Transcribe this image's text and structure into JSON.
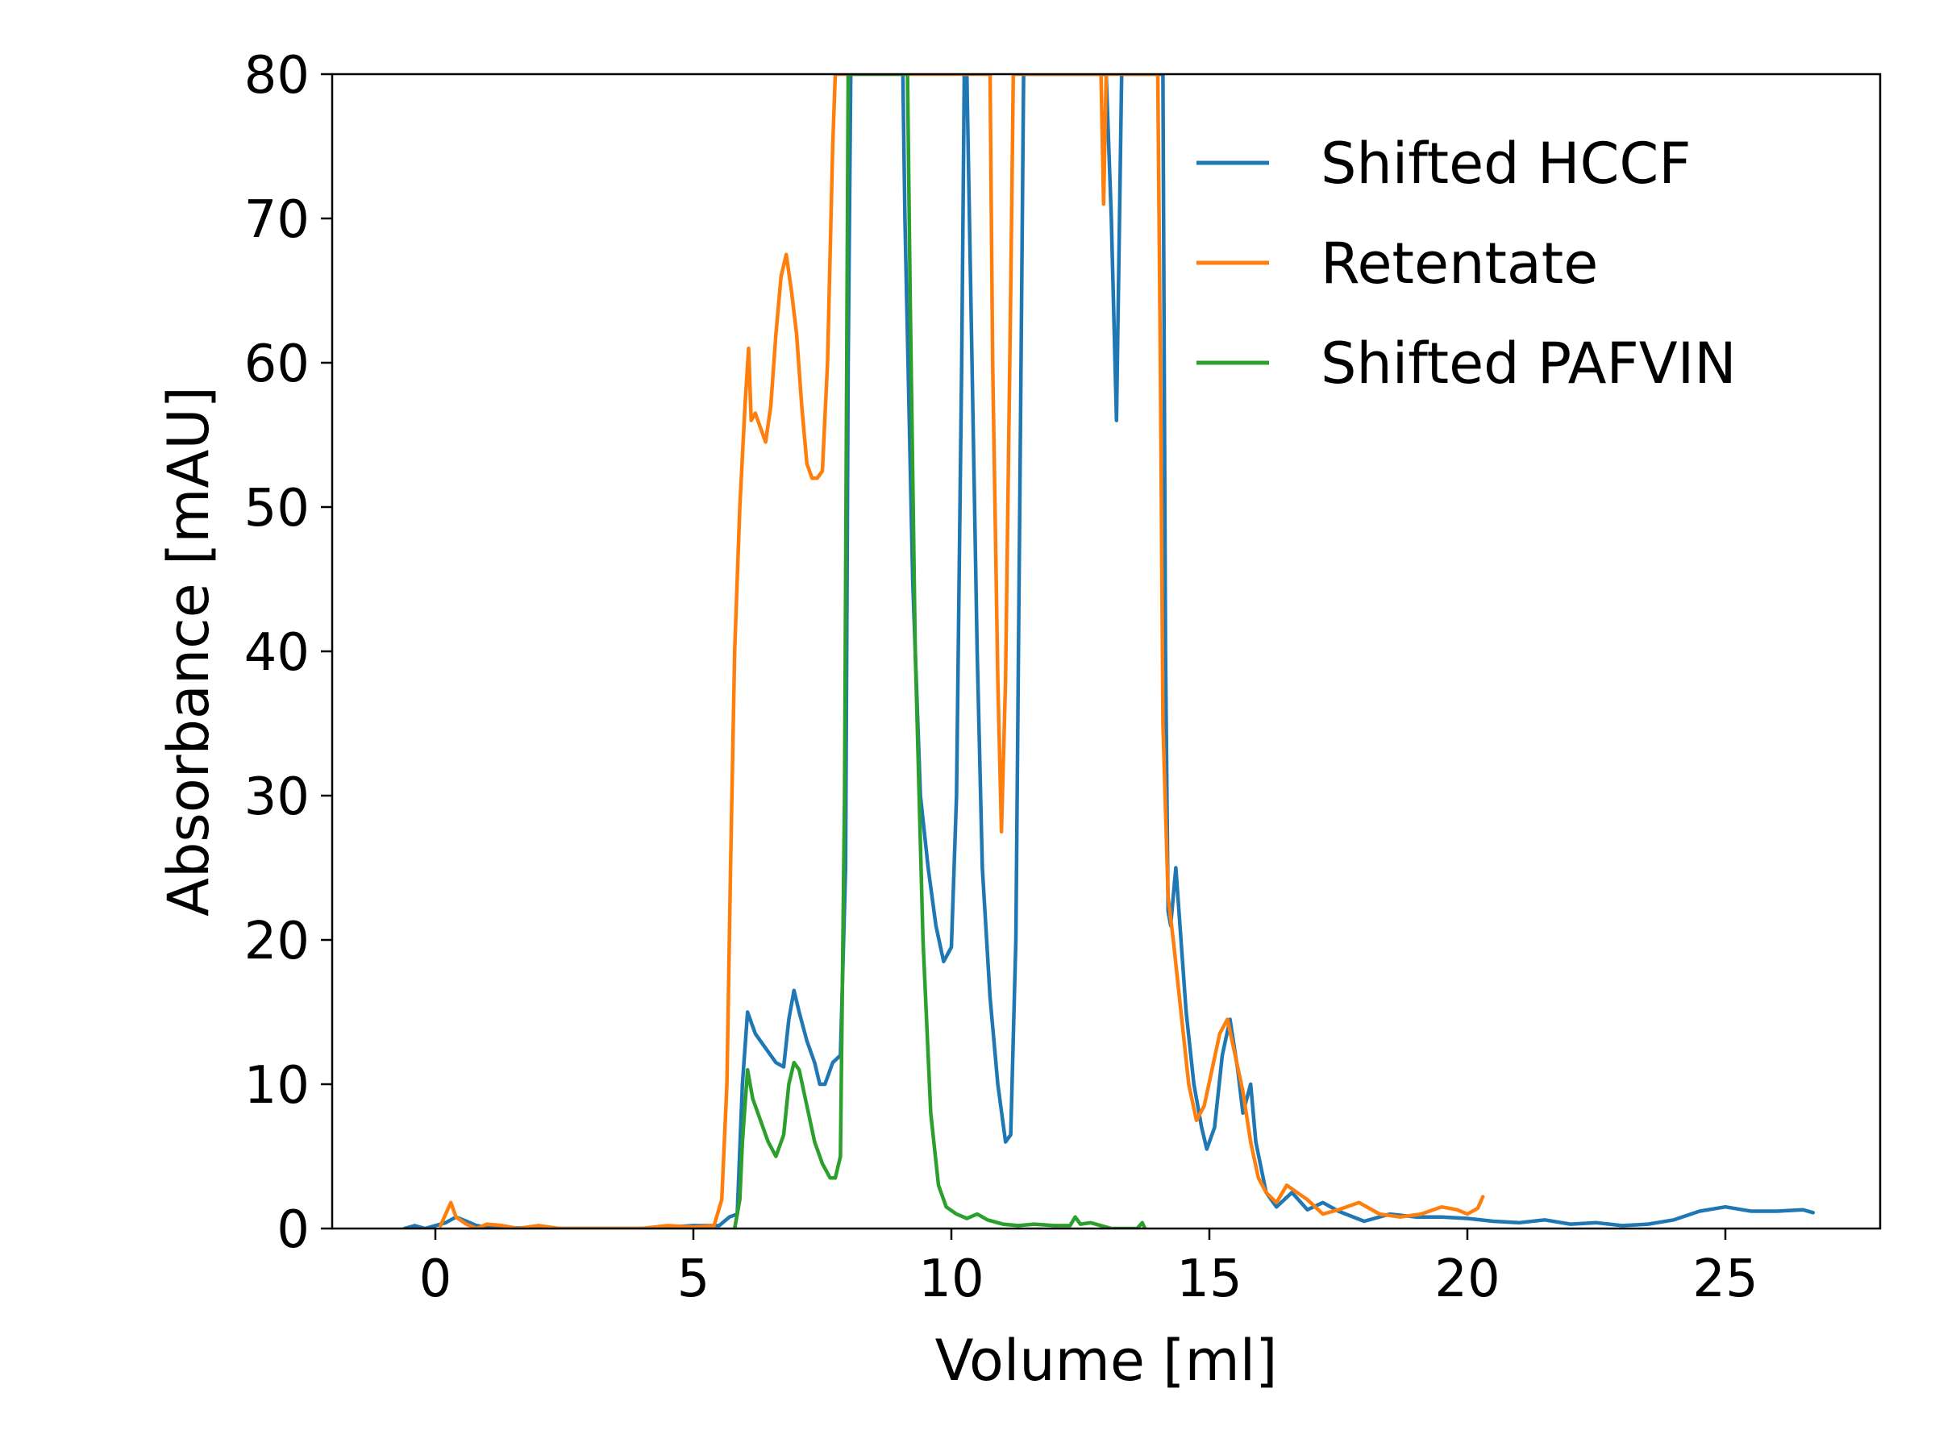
{
  "chart_data": {
    "type": "line",
    "title": "",
    "xlabel": "Volume [ml]",
    "ylabel": "Absorbance [mAU]",
    "xlim": [
      -2,
      28
    ],
    "ylim": [
      0,
      80
    ],
    "xticks": [
      0,
      5,
      10,
      15,
      20,
      25
    ],
    "yticks": [
      0,
      10,
      20,
      30,
      40,
      50,
      60,
      70,
      80
    ],
    "xtick_labels": [
      "0",
      "5",
      "10",
      "15",
      "20",
      "25"
    ],
    "ytick_labels": [
      "0",
      "10",
      "20",
      "30",
      "40",
      "50",
      "60",
      "70",
      "80"
    ],
    "grid": false,
    "legend_position": "top-right",
    "series": [
      {
        "name": "Shifted HCCF",
        "color": "#1f77b4",
        "points": [
          [
            -0.6,
            0.0
          ],
          [
            -0.4,
            0.2
          ],
          [
            -0.2,
            0.0
          ],
          [
            0,
            0.2
          ],
          [
            0.2,
            0.4
          ],
          [
            0.4,
            0.8
          ],
          [
            0.6,
            0.5
          ],
          [
            0.8,
            0.2
          ],
          [
            1.0,
            0.1
          ],
          [
            2.0,
            0.0
          ],
          [
            3.0,
            0.0
          ],
          [
            4.0,
            0.0
          ],
          [
            5.0,
            0.2
          ],
          [
            5.5,
            0.2
          ],
          [
            5.7,
            0.8
          ],
          [
            5.85,
            1.0
          ],
          [
            5.95,
            10
          ],
          [
            6.05,
            15.0
          ],
          [
            6.2,
            13.5
          ],
          [
            6.4,
            12.5
          ],
          [
            6.6,
            11.5
          ],
          [
            6.75,
            11.2
          ],
          [
            6.85,
            14.5
          ],
          [
            6.95,
            16.5
          ],
          [
            7.05,
            15.0
          ],
          [
            7.2,
            13.0
          ],
          [
            7.35,
            11.5
          ],
          [
            7.45,
            10.0
          ],
          [
            7.55,
            10.0
          ],
          [
            7.7,
            11.5
          ],
          [
            7.85,
            12.0
          ],
          [
            7.95,
            25.0
          ],
          [
            8.0,
            60.0
          ],
          [
            8.05,
            80.0
          ],
          [
            8.5,
            95.0
          ],
          [
            9.0,
            95.0
          ],
          [
            9.1,
            70.0
          ],
          [
            9.25,
            45.0
          ],
          [
            9.4,
            30.0
          ],
          [
            9.55,
            25.0
          ],
          [
            9.7,
            21.0
          ],
          [
            9.85,
            18.5
          ],
          [
            10.0,
            19.5
          ],
          [
            10.1,
            30.0
          ],
          [
            10.2,
            60.0
          ],
          [
            10.25,
            80.0
          ],
          [
            10.3,
            80.0
          ],
          [
            10.4,
            60.0
          ],
          [
            10.5,
            40.0
          ],
          [
            10.6,
            25.0
          ],
          [
            10.75,
            16.0
          ],
          [
            10.9,
            10.0
          ],
          [
            11.05,
            6.0
          ],
          [
            11.15,
            6.5
          ],
          [
            11.25,
            20.0
          ],
          [
            11.35,
            60.0
          ],
          [
            11.4,
            80.0
          ],
          [
            12.9,
            80.0
          ],
          [
            13.0,
            80.0
          ],
          [
            13.1,
            70.0
          ],
          [
            13.2,
            56.0
          ],
          [
            13.3,
            80.0
          ],
          [
            14.1,
            80.0
          ],
          [
            14.15,
            40.0
          ],
          [
            14.2,
            22.0
          ],
          [
            14.25,
            21.0
          ],
          [
            14.35,
            25.0
          ],
          [
            14.45,
            20.0
          ],
          [
            14.55,
            15.0
          ],
          [
            14.7,
            10.0
          ],
          [
            14.85,
            7.0
          ],
          [
            14.95,
            5.5
          ],
          [
            15.1,
            7.0
          ],
          [
            15.25,
            12.0
          ],
          [
            15.4,
            14.5
          ],
          [
            15.55,
            11.0
          ],
          [
            15.65,
            8.0
          ],
          [
            15.8,
            10.0
          ],
          [
            15.9,
            6.0
          ],
          [
            16.1,
            2.5
          ],
          [
            16.3,
            1.5
          ],
          [
            16.6,
            2.5
          ],
          [
            16.9,
            1.3
          ],
          [
            17.2,
            1.8
          ],
          [
            17.5,
            1.2
          ],
          [
            18.0,
            0.5
          ],
          [
            18.5,
            1.0
          ],
          [
            19.0,
            0.8
          ],
          [
            19.5,
            0.8
          ],
          [
            20.0,
            0.7
          ],
          [
            20.5,
            0.5
          ],
          [
            21.0,
            0.4
          ],
          [
            21.5,
            0.6
          ],
          [
            22.0,
            0.3
          ],
          [
            22.5,
            0.4
          ],
          [
            23.0,
            0.2
          ],
          [
            23.5,
            0.3
          ],
          [
            24.0,
            0.6
          ],
          [
            24.5,
            1.2
          ],
          [
            25.0,
            1.5
          ],
          [
            25.5,
            1.2
          ],
          [
            26.0,
            1.2
          ],
          [
            26.5,
            1.3
          ],
          [
            26.7,
            1.1
          ]
        ]
      },
      {
        "name": "Retentate",
        "color": "#ff7f0e",
        "points": [
          [
            0.1,
            0.2
          ],
          [
            0.2,
            1.0
          ],
          [
            0.3,
            1.8
          ],
          [
            0.4,
            0.8
          ],
          [
            0.6,
            0.3
          ],
          [
            0.8,
            0.0
          ],
          [
            1.0,
            0.3
          ],
          [
            1.3,
            0.2
          ],
          [
            1.6,
            0.0
          ],
          [
            2.0,
            0.2
          ],
          [
            2.4,
            0.0
          ],
          [
            3.0,
            0.0
          ],
          [
            4.0,
            0.0
          ],
          [
            4.5,
            0.2
          ],
          [
            5.0,
            0.1
          ],
          [
            5.4,
            0.2
          ],
          [
            5.55,
            2.0
          ],
          [
            5.65,
            10.0
          ],
          [
            5.72,
            25.0
          ],
          [
            5.8,
            40.0
          ],
          [
            5.9,
            50.0
          ],
          [
            6.0,
            57.0
          ],
          [
            6.07,
            61.0
          ],
          [
            6.12,
            56.0
          ],
          [
            6.2,
            56.5
          ],
          [
            6.3,
            55.5
          ],
          [
            6.4,
            54.5
          ],
          [
            6.5,
            57.0
          ],
          [
            6.6,
            62.0
          ],
          [
            6.7,
            66.0
          ],
          [
            6.8,
            67.5
          ],
          [
            6.9,
            65.0
          ],
          [
            7.0,
            62.0
          ],
          [
            7.1,
            57.0
          ],
          [
            7.2,
            53.0
          ],
          [
            7.3,
            52.0
          ],
          [
            7.4,
            52.0
          ],
          [
            7.5,
            52.5
          ],
          [
            7.6,
            60.0
          ],
          [
            7.7,
            75.0
          ],
          [
            7.75,
            80.0
          ],
          [
            10.75,
            80.0
          ],
          [
            10.8,
            60.0
          ],
          [
            10.9,
            38.0
          ],
          [
            10.97,
            27.5
          ],
          [
            11.05,
            38.0
          ],
          [
            11.15,
            65.0
          ],
          [
            11.2,
            80.0
          ],
          [
            12.9,
            80.0
          ],
          [
            12.95,
            71.0
          ],
          [
            13.0,
            80.0
          ],
          [
            14.0,
            80.0
          ],
          [
            14.05,
            60.0
          ],
          [
            14.1,
            35.0
          ],
          [
            14.2,
            23.0
          ],
          [
            14.3,
            20.0
          ],
          [
            14.45,
            15.0
          ],
          [
            14.6,
            10.0
          ],
          [
            14.75,
            7.5
          ],
          [
            14.9,
            8.5
          ],
          [
            15.05,
            11.0
          ],
          [
            15.2,
            13.5
          ],
          [
            15.35,
            14.5
          ],
          [
            15.5,
            12.0
          ],
          [
            15.65,
            9.5
          ],
          [
            15.8,
            6.0
          ],
          [
            15.95,
            3.5
          ],
          [
            16.1,
            2.5
          ],
          [
            16.3,
            1.8
          ],
          [
            16.5,
            3.0
          ],
          [
            16.7,
            2.5
          ],
          [
            16.9,
            2.0
          ],
          [
            17.2,
            1.0
          ],
          [
            17.5,
            1.3
          ],
          [
            17.9,
            1.8
          ],
          [
            18.3,
            1.0
          ],
          [
            18.7,
            0.8
          ],
          [
            19.1,
            1.0
          ],
          [
            19.5,
            1.5
          ],
          [
            19.8,
            1.3
          ],
          [
            20.0,
            1.0
          ],
          [
            20.2,
            1.4
          ],
          [
            20.3,
            2.2
          ]
        ]
      },
      {
        "name": "Shifted PAFVIN",
        "color": "#2ca02c",
        "points": [
          [
            5.8,
            0.0
          ],
          [
            5.9,
            2.0
          ],
          [
            5.95,
            6.0
          ],
          [
            6.05,
            11.0
          ],
          [
            6.15,
            9.0
          ],
          [
            6.3,
            7.5
          ],
          [
            6.45,
            6.0
          ],
          [
            6.6,
            5.0
          ],
          [
            6.75,
            6.5
          ],
          [
            6.85,
            10.0
          ],
          [
            6.95,
            11.5
          ],
          [
            7.05,
            11.0
          ],
          [
            7.2,
            8.5
          ],
          [
            7.35,
            6.0
          ],
          [
            7.5,
            4.5
          ],
          [
            7.65,
            3.5
          ],
          [
            7.75,
            3.5
          ],
          [
            7.85,
            5.0
          ],
          [
            7.93,
            30.0
          ],
          [
            8.0,
            80.0
          ],
          [
            9.15,
            80.0
          ],
          [
            9.2,
            65.0
          ],
          [
            9.3,
            40.0
          ],
          [
            9.45,
            20.0
          ],
          [
            9.6,
            8.0
          ],
          [
            9.75,
            3.0
          ],
          [
            9.9,
            1.5
          ],
          [
            10.1,
            1.0
          ],
          [
            10.3,
            0.7
          ],
          [
            10.5,
            1.0
          ],
          [
            10.7,
            0.6
          ],
          [
            11.0,
            0.3
          ],
          [
            11.3,
            0.2
          ],
          [
            11.6,
            0.3
          ],
          [
            12.0,
            0.2
          ],
          [
            12.3,
            0.2
          ],
          [
            12.4,
            0.8
          ],
          [
            12.5,
            0.3
          ],
          [
            12.7,
            0.4
          ],
          [
            12.9,
            0.2
          ],
          [
            13.1,
            0.0
          ],
          [
            13.6,
            0.0
          ],
          [
            13.7,
            0.4
          ],
          [
            13.75,
            0.0
          ]
        ]
      }
    ]
  }
}
